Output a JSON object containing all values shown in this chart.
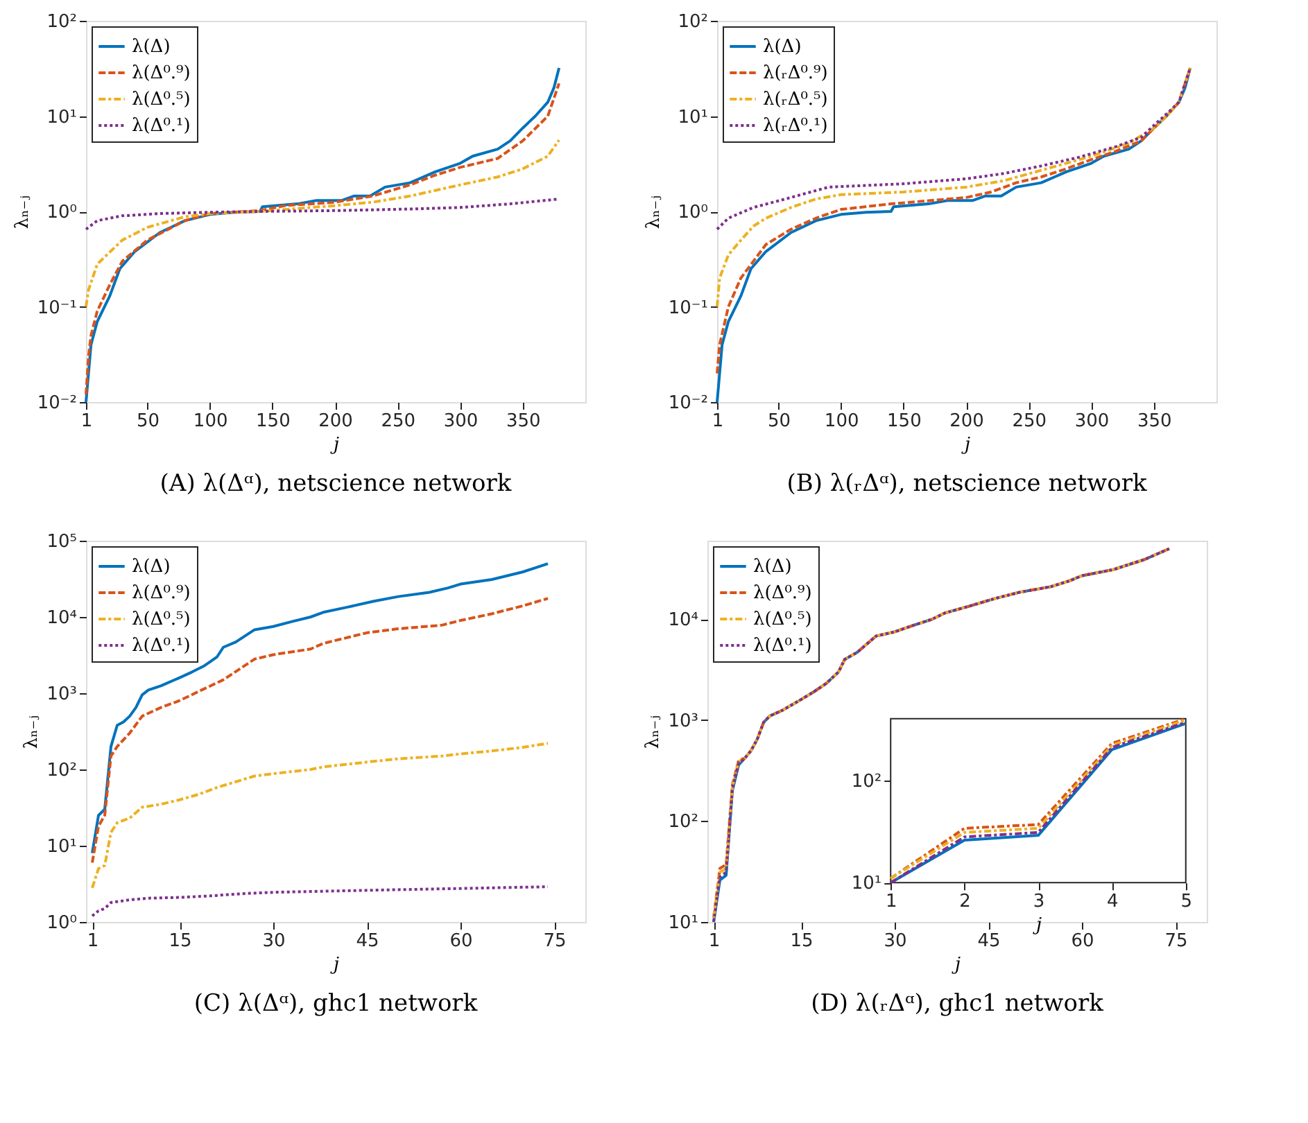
{
  "chart_data": [
    {
      "type": "line",
      "title": "(A) λ(Δᵅ), netscience network",
      "xlabel": "j",
      "ylabel": "λₙ₋ⱼ",
      "log": "y",
      "legend": "top left",
      "xlim": [
        1,
        400
      ],
      "ylim": [
        0.01,
        100
      ],
      "xticks": [
        1,
        50,
        100,
        150,
        200,
        250,
        300,
        350
      ],
      "yticks": [
        {
          "value": 0.01,
          "label": "10⁻²"
        },
        {
          "value": 0.1,
          "label": "10⁻¹"
        },
        {
          "value": 1,
          "label": "10⁰"
        },
        {
          "value": 10,
          "label": "10¹"
        },
        {
          "value": 100,
          "label": "10²"
        }
      ],
      "series": [
        {
          "name": "λ(Δ)",
          "color": "#0072bd",
          "line_style": "solid",
          "x": [
            1,
            3,
            5,
            10,
            20,
            28,
            40,
            60,
            80,
            100,
            120,
            140,
            142,
            170,
            185,
            205,
            215,
            228,
            240,
            260,
            280,
            300,
            310,
            330,
            340,
            350,
            360,
            370,
            375,
            379
          ],
          "values": [
            0.01,
            0.02,
            0.04,
            0.07,
            0.13,
            0.25,
            0.38,
            0.6,
            0.8,
            0.93,
            0.98,
            1.0,
            1.12,
            1.2,
            1.3,
            1.3,
            1.45,
            1.45,
            1.8,
            2.0,
            2.6,
            3.2,
            3.8,
            4.5,
            5.5,
            7.5,
            10,
            14,
            20,
            32
          ]
        },
        {
          "name": "λ(Δ⁰.⁹)",
          "color": "#d95319",
          "line_style": "dashed",
          "x": [
            1,
            3,
            5,
            10,
            20,
            30,
            50,
            80,
            100,
            140,
            160,
            200,
            230,
            260,
            280,
            300,
            330,
            350,
            370,
            379
          ],
          "values": [
            0.012,
            0.03,
            0.05,
            0.09,
            0.17,
            0.3,
            0.5,
            0.8,
            0.95,
            1.02,
            1.15,
            1.25,
            1.45,
            1.9,
            2.4,
            2.9,
            3.6,
            5.5,
            10,
            22
          ]
        },
        {
          "name": "λ(Δ⁰.⁵)",
          "color": "#edb120",
          "line_style": "dashdot",
          "x": [
            1,
            3,
            10,
            30,
            50,
            80,
            100,
            140,
            200,
            230,
            260,
            300,
            330,
            350,
            370,
            379
          ],
          "values": [
            0.1,
            0.15,
            0.28,
            0.5,
            0.68,
            0.88,
            0.95,
            1.0,
            1.15,
            1.25,
            1.45,
            1.9,
            2.3,
            2.8,
            3.8,
            5.6
          ]
        },
        {
          "name": "λ(Δ⁰.¹)",
          "color": "#7e2f8e",
          "line_style": "dotted",
          "x": [
            1,
            10,
            30,
            60,
            100,
            140,
            200,
            260,
            300,
            340,
            379
          ],
          "values": [
            0.65,
            0.8,
            0.9,
            0.95,
            0.98,
            1.0,
            1.02,
            1.06,
            1.1,
            1.2,
            1.35
          ]
        }
      ]
    },
    {
      "type": "line",
      "title": "(B) λ(ᵣΔᵅ), netscience network",
      "xlabel": "j",
      "ylabel": "λₙ₋ⱼ",
      "log": "y",
      "legend": "top left",
      "xlim": [
        1,
        400
      ],
      "ylim": [
        0.01,
        100
      ],
      "xticks": [
        1,
        50,
        100,
        150,
        200,
        250,
        300,
        350
      ],
      "yticks": [
        {
          "value": 0.01,
          "label": "10⁻²"
        },
        {
          "value": 0.1,
          "label": "10⁻¹"
        },
        {
          "value": 1,
          "label": "10⁰"
        },
        {
          "value": 10,
          "label": "10¹"
        },
        {
          "value": 100,
          "label": "10²"
        }
      ],
      "series": [
        {
          "name": "λ(Δ)",
          "color": "#0072bd",
          "line_style": "solid",
          "x": [
            1,
            3,
            5,
            10,
            20,
            28,
            40,
            60,
            80,
            100,
            120,
            140,
            142,
            170,
            185,
            205,
            215,
            228,
            240,
            260,
            280,
            300,
            310,
            330,
            340,
            350,
            360,
            370,
            375,
            379
          ],
          "values": [
            0.01,
            0.02,
            0.04,
            0.07,
            0.13,
            0.25,
            0.38,
            0.6,
            0.8,
            0.93,
            0.98,
            1.0,
            1.12,
            1.2,
            1.3,
            1.3,
            1.45,
            1.45,
            1.8,
            2.0,
            2.6,
            3.2,
            3.8,
            4.5,
            5.5,
            7.5,
            10,
            14,
            20,
            32
          ]
        },
        {
          "name": "λ(ᵣΔ⁰.⁹)",
          "color": "#d95319",
          "line_style": "dashed",
          "x": [
            1,
            3,
            10,
            20,
            30,
            40,
            60,
            80,
            100,
            140,
            200,
            220,
            240,
            260,
            280,
            300,
            320,
            340,
            350,
            360,
            370,
            379
          ],
          "values": [
            0.02,
            0.04,
            0.1,
            0.2,
            0.3,
            0.45,
            0.65,
            0.85,
            1.05,
            1.2,
            1.4,
            1.6,
            2.0,
            2.3,
            2.8,
            3.5,
            4.3,
            5.5,
            7.5,
            10,
            14,
            32
          ]
        },
        {
          "name": "λ(ᵣΔ⁰.⁵)",
          "color": "#edb120",
          "line_style": "dashdot",
          "x": [
            1,
            3,
            10,
            20,
            30,
            40,
            60,
            80,
            100,
            150,
            200,
            230,
            260,
            300,
            330,
            350,
            360,
            370,
            379
          ],
          "values": [
            0.1,
            0.2,
            0.35,
            0.5,
            0.7,
            0.85,
            1.1,
            1.35,
            1.5,
            1.6,
            1.8,
            2.1,
            2.7,
            3.8,
            5.2,
            7.5,
            10,
            14,
            32
          ]
        },
        {
          "name": "λ(ᵣΔ⁰.¹)",
          "color": "#7e2f8e",
          "line_style": "dotted",
          "x": [
            1,
            10,
            30,
            60,
            90,
            150,
            200,
            230,
            260,
            290,
            320,
            340,
            350,
            360,
            370,
            379
          ],
          "values": [
            0.65,
            0.85,
            1.1,
            1.4,
            1.8,
            1.95,
            2.2,
            2.5,
            3.0,
            3.7,
            4.8,
            6,
            8,
            10.5,
            14,
            32
          ]
        }
      ]
    },
    {
      "type": "line",
      "title": "(C) λ(Δᵅ), ghc1 network",
      "xlabel": "j",
      "ylabel": "λₙ₋ⱼ",
      "log": "y",
      "legend": "top left",
      "xlim": [
        0,
        80
      ],
      "ylim": [
        1,
        100000
      ],
      "xticks": [
        1,
        15,
        30,
        45,
        60,
        75
      ],
      "yticks": [
        {
          "value": 1,
          "label": "10⁰"
        },
        {
          "value": 10,
          "label": "10¹"
        },
        {
          "value": 100,
          "label": "10²"
        },
        {
          "value": 1000,
          "label": "10³"
        },
        {
          "value": 10000,
          "label": "10⁴"
        },
        {
          "value": 100000,
          "label": "10⁵"
        }
      ],
      "series": [
        {
          "name": "λ(Δ)",
          "color": "#0072bd",
          "line_style": "solid",
          "x": [
            1,
            2,
            3,
            4,
            5,
            6,
            7,
            8,
            9,
            10,
            12,
            15,
            17,
            19,
            21,
            22,
            24,
            27,
            30,
            33,
            36,
            38,
            42,
            46,
            50,
            55,
            58,
            60,
            65,
            70,
            74
          ],
          "values": [
            8,
            25,
            30,
            200,
            380,
            420,
            500,
            650,
            950,
            1100,
            1250,
            1600,
            1900,
            2300,
            3000,
            4000,
            4700,
            6800,
            7500,
            8700,
            10000,
            11500,
            13500,
            16000,
            18500,
            21000,
            24000,
            27000,
            31000,
            39000,
            50000
          ]
        },
        {
          "name": "λ(Δ⁰.⁹)",
          "color": "#d95319",
          "line_style": "dashed",
          "x": [
            1,
            2,
            3,
            4,
            5,
            7,
            9,
            12,
            15,
            18,
            22,
            27,
            30,
            36,
            38,
            45,
            50,
            57,
            60,
            65,
            70,
            74
          ],
          "values": [
            6,
            18,
            25,
            150,
            200,
            300,
            500,
            650,
            800,
            1050,
            1500,
            2800,
            3200,
            3800,
            4500,
            6200,
            7000,
            7800,
            9000,
            11000,
            14000,
            17500
          ]
        },
        {
          "name": "λ(Δ⁰.⁵)",
          "color": "#edb120",
          "line_style": "dashdot",
          "x": [
            1,
            2,
            3,
            4,
            5,
            7,
            9,
            12,
            15,
            18,
            21,
            27,
            30,
            36,
            38,
            45,
            50,
            57,
            60,
            65,
            70,
            74
          ],
          "values": [
            2.8,
            5,
            5.5,
            15,
            20,
            23,
            32,
            35,
            40,
            47,
            58,
            82,
            88,
            100,
            108,
            125,
            138,
            150,
            160,
            175,
            195,
            220
          ]
        },
        {
          "name": "λ(Δ⁰.¹)",
          "color": "#7e2f8e",
          "line_style": "dotted",
          "x": [
            1,
            2,
            3,
            4,
            7,
            10,
            15,
            20,
            25,
            30,
            40,
            50,
            60,
            74
          ],
          "values": [
            1.2,
            1.4,
            1.5,
            1.8,
            1.95,
            2.05,
            2.1,
            2.2,
            2.35,
            2.45,
            2.55,
            2.65,
            2.75,
            2.9
          ]
        }
      ]
    },
    {
      "type": "line",
      "title": "(D) λ(ᵣΔᵅ), ghc1 network",
      "xlabel": "j",
      "ylabel": "λₙ₋ⱼ",
      "log": "y",
      "legend": "top left",
      "xlim": [
        0,
        80
      ],
      "ylim": [
        10,
        60000
      ],
      "xticks": [
        1,
        15,
        30,
        45,
        60,
        75
      ],
      "yticks": [
        {
          "value": 10,
          "label": "10¹"
        },
        {
          "value": 100,
          "label": "10²"
        },
        {
          "value": 1000,
          "label": "10³"
        },
        {
          "value": 10000,
          "label": "10⁴"
        }
      ],
      "series": [
        {
          "name": "λ(Δ)",
          "color": "#0072bd",
          "line_style": "solid",
          "x": [
            1,
            2,
            3,
            4,
            5,
            6,
            7,
            8,
            9,
            10,
            12,
            15,
            17,
            19,
            21,
            22,
            24,
            27,
            30,
            33,
            36,
            38,
            42,
            46,
            50,
            55,
            58,
            60,
            65,
            70,
            74
          ],
          "values": [
            10,
            26,
            29,
            200,
            360,
            420,
            500,
            650,
            950,
            1100,
            1250,
            1600,
            1900,
            2300,
            3000,
            4000,
            4700,
            6800,
            7500,
            8700,
            10000,
            11500,
            13500,
            16000,
            18500,
            21000,
            24000,
            27000,
            31000,
            39000,
            50000
          ]
        },
        {
          "name": "λ(Δ⁰.⁹)",
          "color": "#d95319",
          "line_style": "dashed",
          "x": [
            1,
            2,
            3,
            4,
            5,
            6,
            7,
            8,
            9,
            10,
            12,
            15,
            17,
            19,
            21,
            22,
            24,
            27,
            30,
            33,
            36,
            38,
            42,
            46,
            50,
            55,
            58,
            60,
            65,
            70,
            74
          ],
          "values": [
            11,
            34,
            37,
            230,
            400,
            420,
            500,
            650,
            950,
            1100,
            1250,
            1600,
            1900,
            2300,
            3000,
            4000,
            4700,
            6800,
            7500,
            8700,
            10000,
            11500,
            13500,
            16000,
            18500,
            21000,
            24000,
            27000,
            31000,
            39000,
            50000
          ]
        },
        {
          "name": "λ(Δ⁰.⁵)",
          "color": "#edb120",
          "line_style": "dashdot",
          "x": [
            1,
            2,
            3,
            4,
            5,
            6,
            7,
            8,
            9,
            10,
            12,
            15,
            17,
            19,
            21,
            22,
            24,
            27,
            30,
            33,
            36,
            38,
            42,
            46,
            50,
            55,
            58,
            60,
            65,
            70,
            74
          ],
          "values": [
            11,
            31,
            34,
            220,
            390,
            420,
            500,
            650,
            950,
            1100,
            1250,
            1600,
            1900,
            2300,
            3000,
            4000,
            4700,
            6800,
            7500,
            8700,
            10000,
            11500,
            13500,
            16000,
            18500,
            21000,
            24000,
            27000,
            31000,
            39000,
            50000
          ]
        },
        {
          "name": "λ(Δ⁰.¹)",
          "color": "#7e2f8e",
          "line_style": "dotted",
          "x": [
            1,
            2,
            3,
            4,
            5,
            6,
            7,
            8,
            9,
            10,
            12,
            15,
            17,
            19,
            21,
            22,
            24,
            27,
            30,
            33,
            36,
            38,
            42,
            46,
            50,
            55,
            58,
            60,
            65,
            70,
            74
          ],
          "values": [
            10,
            28,
            31,
            210,
            370,
            420,
            500,
            650,
            950,
            1100,
            1250,
            1600,
            1900,
            2300,
            3000,
            4000,
            4700,
            6800,
            7500,
            8700,
            10000,
            11500,
            13500,
            16000,
            18500,
            21000,
            24000,
            27000,
            31000,
            39000,
            50000
          ]
        }
      ]
    },
    {
      "type": "line",
      "xlabel": "j",
      "log": "y",
      "xlim": [
        1,
        5
      ],
      "ylim": [
        10,
        400
      ],
      "xticks": [
        1,
        2,
        3,
        4,
        5
      ],
      "yticks": [
        {
          "value": 10,
          "label": "10¹"
        },
        {
          "value": 100,
          "label": "10²"
        }
      ],
      "series": [
        {
          "color": "#0072bd",
          "line_style": "solid",
          "x": [
            1,
            2,
            3,
            4,
            5
          ],
          "values": [
            10,
            26,
            29,
            200,
            360
          ]
        },
        {
          "color": "#d95319",
          "line_style": "dashdot",
          "x": [
            1,
            2,
            3,
            4,
            5
          ],
          "values": [
            11,
            34,
            37,
            230,
            400
          ]
        },
        {
          "color": "#edb120",
          "line_style": "dashdot",
          "x": [
            1,
            2,
            3,
            4,
            5
          ],
          "values": [
            11,
            31,
            34,
            220,
            390
          ]
        },
        {
          "color": "#7e2f8e",
          "line_style": "dashdot",
          "x": [
            1,
            2,
            3,
            4,
            5
          ],
          "values": [
            10,
            28,
            31,
            210,
            370
          ]
        }
      ]
    }
  ]
}
